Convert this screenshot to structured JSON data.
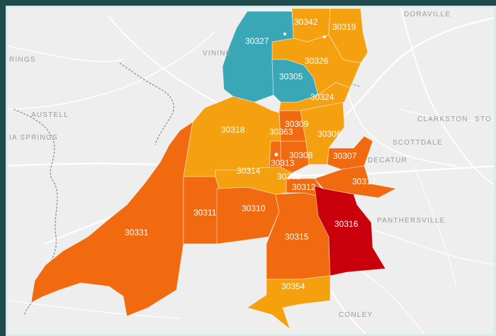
{
  "colors": {
    "teal": "#3aa7b6",
    "orange": "#f5a10f",
    "dark_orange": "#f26a0f",
    "red": "#c9000c",
    "background": "#eeeeee",
    "frame": "#1f4a4e"
  },
  "places": [
    {
      "id": "doraville",
      "label": "DORAVILLE"
    },
    {
      "id": "rings",
      "label": "RINGS"
    },
    {
      "id": "vining",
      "label": "VINING"
    },
    {
      "id": "austell",
      "label": "AUSTELL"
    },
    {
      "id": "ia-springs",
      "label": "IA SPRINGS"
    },
    {
      "id": "clarkston",
      "label": "CLARKSTON"
    },
    {
      "id": "sto",
      "label": "STO"
    },
    {
      "id": "scottdale",
      "label": "SCOTTDALE"
    },
    {
      "id": "decatur",
      "label": "DECATUR"
    },
    {
      "id": "panthersville",
      "label": "PANTHERSVILLE"
    },
    {
      "id": "conley",
      "label": "CONLEY"
    }
  ],
  "zip_codes": [
    {
      "code": "30327",
      "category": "teal"
    },
    {
      "code": "30305",
      "category": "teal"
    },
    {
      "code": "30342",
      "category": "orange"
    },
    {
      "code": "30319",
      "category": "orange"
    },
    {
      "code": "30326",
      "category": "orange"
    },
    {
      "code": "30324",
      "category": "orange"
    },
    {
      "code": "30318",
      "category": "orange"
    },
    {
      "code": "30306",
      "category": "orange"
    },
    {
      "code": "30314",
      "category": "orange"
    },
    {
      "code": "30354",
      "category": "orange"
    },
    {
      "code": "30363",
      "category": "dark_orange"
    },
    {
      "code": "30309",
      "category": "dark_orange"
    },
    {
      "code": "30308",
      "category": "dark_orange"
    },
    {
      "code": "30313",
      "category": "dark_orange"
    },
    {
      "code": "30303",
      "category": "dark_orange"
    },
    {
      "code": "30312",
      "category": "dark_orange"
    },
    {
      "code": "30307",
      "category": "dark_orange"
    },
    {
      "code": "30317",
      "category": "dark_orange"
    },
    {
      "code": "30311",
      "category": "dark_orange"
    },
    {
      "code": "30310",
      "category": "dark_orange"
    },
    {
      "code": "30315",
      "category": "dark_orange"
    },
    {
      "code": "30331",
      "category": "dark_orange"
    },
    {
      "code": "30316",
      "category": "red"
    }
  ]
}
